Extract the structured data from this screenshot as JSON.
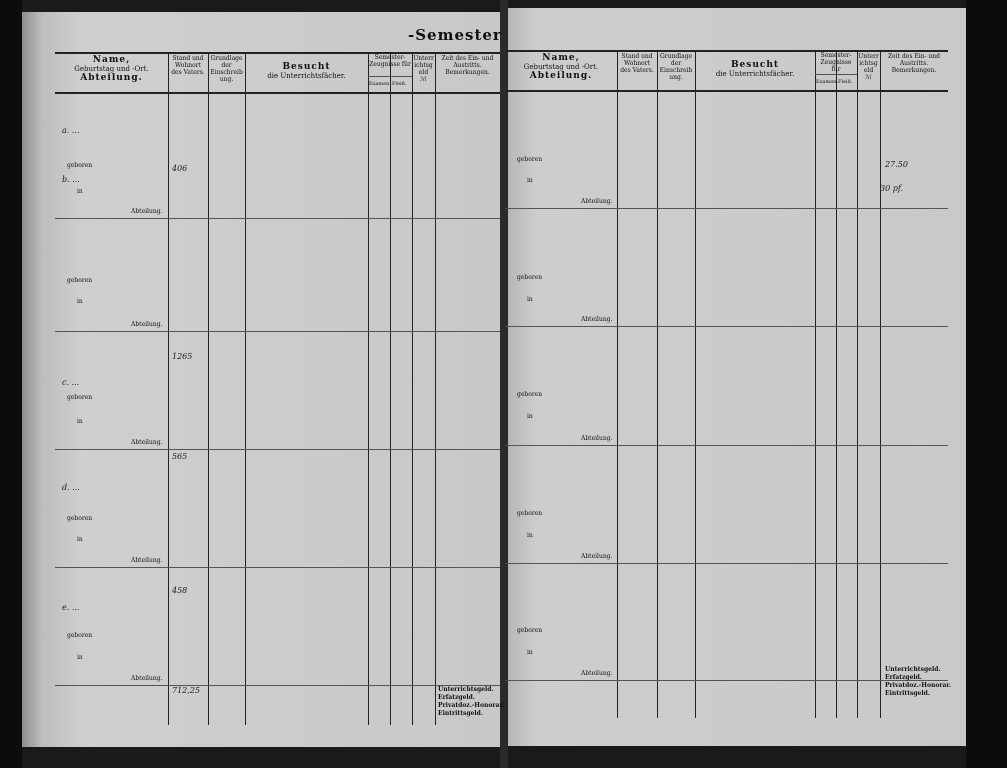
{
  "semester_title": "-Semester",
  "header": {
    "name": "Name,",
    "name2": "Geburtstag und -Ort.",
    "name3": "Abteilung.",
    "stand": "Stand und Wohnort des Vaters.",
    "grundlage": "Grundlage der Einschreibung.",
    "besucht": "Besucht",
    "besucht2": "die Unterrichtsfächer.",
    "zeugnisse": "Semester-Zeugnisse für",
    "zeugnis_sub1": "Examen.",
    "zeugnis_sub2": "Fleiß.",
    "unterricht": "Unterrichtsgeld",
    "unterricht_unit": "ℳ",
    "zeit": "Zeit des Ein- und Austritts. Bemerkungen."
  },
  "row_labels": {
    "born": "geboren",
    "in": "in",
    "dept": "Abteilung."
  },
  "footer_fees": [
    "Unterrichtsgeld.",
    "Erfatzgeld.",
    "Privatdoz.-Honorar.",
    "Eintrittsgeld."
  ],
  "left_handwritten": {
    "section_a": "a. ...",
    "section_b": "b. ...",
    "section_c": "c. ...",
    "section_d": "d. ...",
    "section_e": "e. ...",
    "totals": [
      "406",
      "1265",
      "565",
      "458",
      "712,25"
    ]
  },
  "right_handwritten": {
    "total1": "27.50",
    "total2": "30 pf."
  }
}
